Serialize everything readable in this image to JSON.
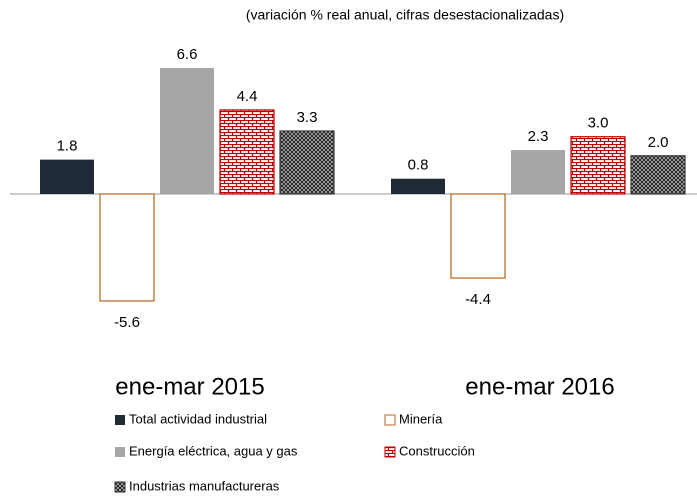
{
  "chart_data": {
    "type": "bar",
    "subtitle": "(variación % real anual, cifras desestacionalizadas)",
    "categories": [
      "ene-mar 2015",
      "ene-mar 2016"
    ],
    "series": [
      {
        "name": "Total actividad industrial",
        "color": "#1f2a36",
        "values": [
          1.8,
          0.8
        ]
      },
      {
        "name": "Minería",
        "color": "#b5651d",
        "values": [
          -5.6,
          -4.4
        ]
      },
      {
        "name": "Energía eléctrica, agua y  gas",
        "color": "#a6a6a6",
        "values": [
          6.6,
          2.3
        ]
      },
      {
        "name": "Construcción",
        "color": "#c00000",
        "values": [
          4.4,
          3
        ],
        "value_labels": [
          "4.4",
          "3.0"
        ]
      },
      {
        "name": "Industrias manufactureras",
        "color": "#3a3a3a",
        "values": [
          3.3,
          2
        ],
        "value_labels": [
          "3.3",
          "2.0"
        ]
      }
    ]
  }
}
